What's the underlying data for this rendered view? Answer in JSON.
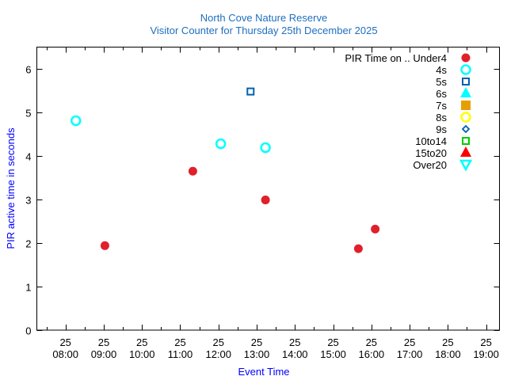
{
  "chart_data": {
    "type": "scatter",
    "title": [
      "North Cove Nature Reserve",
      "Visitor Counter for Thursday 25th December 2025"
    ],
    "xlabel": "Event Time",
    "ylabel": "PIR active time in seconds",
    "xlim_hours": [
      7.25,
      19.35
    ],
    "ylim": [
      0,
      6.5
    ],
    "yticks": [
      0,
      1,
      2,
      3,
      4,
      5,
      6
    ],
    "xticks": [
      {
        "h": 8,
        "day": "25",
        "time": "08:00"
      },
      {
        "h": 9,
        "day": "25",
        "time": "09:00"
      },
      {
        "h": 10,
        "day": "25",
        "time": "10:00"
      },
      {
        "h": 11,
        "day": "25",
        "time": "11:00"
      },
      {
        "h": 12,
        "day": "25",
        "time": "12:00"
      },
      {
        "h": 13,
        "day": "25",
        "time": "13:00"
      },
      {
        "h": 14,
        "day": "25",
        "time": "14:00"
      },
      {
        "h": 15,
        "day": "25",
        "time": "15:00"
      },
      {
        "h": 16,
        "day": "25",
        "time": "16:00"
      },
      {
        "h": 17,
        "day": "25",
        "time": "17:00"
      },
      {
        "h": 18,
        "day": "25",
        "time": "18:00"
      },
      {
        "h": 19,
        "day": "25",
        "time": "19:00"
      }
    ],
    "legend_position": "top-right",
    "series": [
      {
        "name": "PIR Time on .. Under4",
        "marker": "filled-circle",
        "color": "#e0202a",
        "points": [
          [
            9.03,
            1.94
          ],
          [
            11.33,
            3.65
          ],
          [
            13.23,
            2.99
          ],
          [
            15.66,
            1.87
          ],
          [
            16.1,
            2.32
          ]
        ]
      },
      {
        "name": "4s",
        "marker": "open-circle",
        "color": "#00ffff",
        "points": [
          [
            8.27,
            4.81
          ],
          [
            12.06,
            4.28
          ],
          [
            13.23,
            4.19
          ]
        ]
      },
      {
        "name": "5s",
        "marker": "open-square",
        "color": "#0060ad",
        "points": [
          [
            12.84,
            5.48
          ]
        ]
      },
      {
        "name": "6s",
        "marker": "filled-triangle-up",
        "color": "#00ffff",
        "points": []
      },
      {
        "name": "7s",
        "marker": "filled-square",
        "color": "#e69f00",
        "points": []
      },
      {
        "name": "8s",
        "marker": "open-circle",
        "color": "#ffff00",
        "points": []
      },
      {
        "name": "9s",
        "marker": "open-diamond",
        "color": "#0060ad",
        "points": []
      },
      {
        "name": "10to14",
        "marker": "open-square",
        "color": "#00cc00",
        "points": []
      },
      {
        "name": "15to20",
        "marker": "filled-triangle-up",
        "color": "#ff0000",
        "points": []
      },
      {
        "name": "Over20",
        "marker": "open-triangle-down",
        "color": "#00ffff",
        "points": []
      }
    ]
  },
  "colors": {
    "title": "#1f6fbf",
    "axis_label": "#0000ff",
    "axis": "#000000"
  }
}
